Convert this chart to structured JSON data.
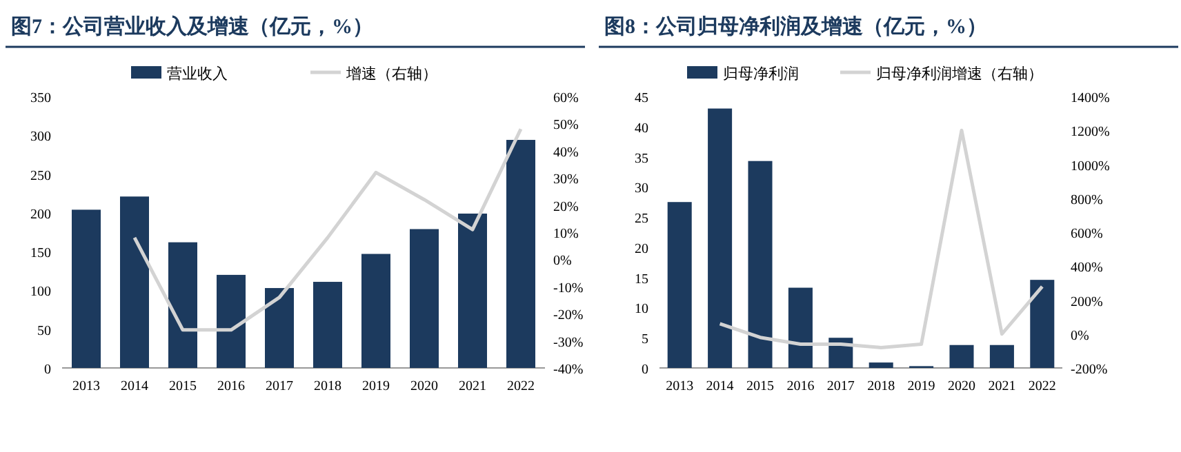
{
  "chart_data": [
    {
      "type": "bar",
      "title": "图7：公司营业收入及增速（亿元，%）",
      "categories": [
        "2013",
        "2014",
        "2015",
        "2016",
        "2017",
        "2018",
        "2019",
        "2020",
        "2021",
        "2022"
      ],
      "series": [
        {
          "name": "营业收入",
          "color": "#1c3a5e",
          "values": [
            204,
            221,
            162,
            120,
            103,
            111,
            147,
            179,
            199,
            294
          ]
        },
        {
          "name": "增速（右轴）",
          "type": "line",
          "axis": "y2",
          "color": "#d3d3d3",
          "values": [
            null,
            8,
            -26,
            -26,
            -14,
            8,
            32,
            22,
            11,
            48
          ]
        }
      ],
      "ylim": [
        0,
        350
      ],
      "yticks": [
        0,
        50,
        100,
        150,
        200,
        250,
        300,
        350
      ],
      "y2lim": [
        -40,
        60
      ],
      "y2ticks": [
        {
          "value": -40,
          "label": "-40%"
        },
        {
          "value": -30,
          "label": "-30%"
        },
        {
          "value": -20,
          "label": "-20%"
        },
        {
          "value": -10,
          "label": "-10%"
        },
        {
          "value": 0,
          "label": "0%"
        },
        {
          "value": 10,
          "label": "10%"
        },
        {
          "value": 20,
          "label": "20%"
        },
        {
          "value": 30,
          "label": "30%"
        },
        {
          "value": 40,
          "label": "40%"
        },
        {
          "value": 50,
          "label": "50%"
        },
        {
          "value": 60,
          "label": "60%"
        }
      ],
      "legend": "top",
      "grid": false
    },
    {
      "type": "bar",
      "title": "图8：公司归母净利润及增速（亿元，%）",
      "categories": [
        "2013",
        "2014",
        "2015",
        "2016",
        "2017",
        "2018",
        "2019",
        "2020",
        "2021",
        "2022"
      ],
      "series": [
        {
          "name": "归母净利润",
          "color": "#1c3a5e",
          "values": [
            27.5,
            43,
            34.3,
            13.3,
            5,
            0.9,
            0.3,
            3.8,
            3.8,
            14.6
          ]
        },
        {
          "name": "归母净利润增速（右轴）",
          "type": "line",
          "axis": "y2",
          "color": "#d3d3d3",
          "values": [
            null,
            60,
            -20,
            -60,
            -60,
            -80,
            -60,
            1200,
            0,
            280
          ]
        }
      ],
      "ylim": [
        0,
        45
      ],
      "yticks": [
        0,
        5,
        10,
        15,
        20,
        25,
        30,
        35,
        40,
        45
      ],
      "y2lim": [
        -200,
        1400
      ],
      "y2ticks": [
        {
          "value": -200,
          "label": "-200%"
        },
        {
          "value": 0,
          "label": "0%"
        },
        {
          "value": 200,
          "label": "200%"
        },
        {
          "value": 400,
          "label": "400%"
        },
        {
          "value": 600,
          "label": "600%"
        },
        {
          "value": 800,
          "label": "800%"
        },
        {
          "value": 1000,
          "label": "1000%"
        },
        {
          "value": 1200,
          "label": "1200%"
        },
        {
          "value": 1400,
          "label": "1400%"
        }
      ],
      "legend": "top",
      "grid": false
    }
  ]
}
